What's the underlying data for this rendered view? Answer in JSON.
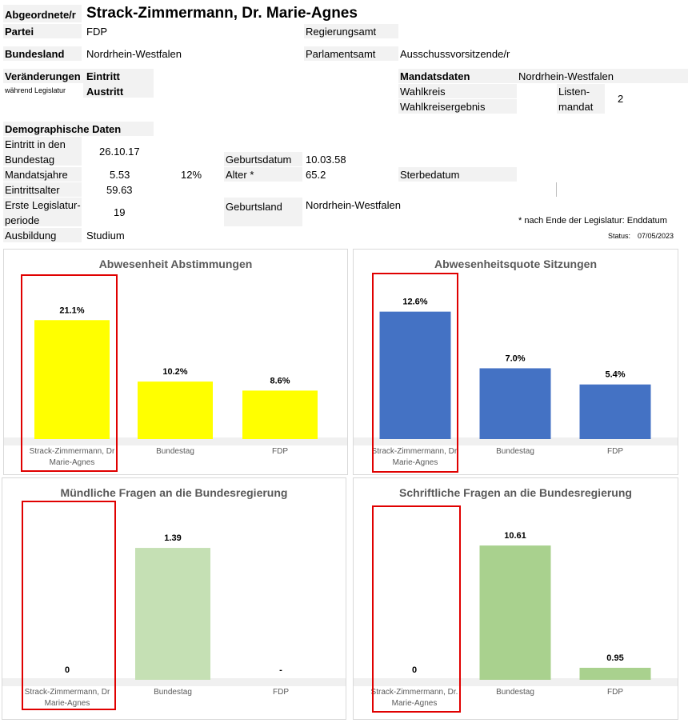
{
  "header": {
    "label": "Abgeordnete/r",
    "name": "Strack-Zimmermann, Dr. Marie-Agnes"
  },
  "info": {
    "partei_label": "Partei",
    "partei": "FDP",
    "regierungsamt_label": "Regierungsamt",
    "bundesland_label": "Bundesland",
    "bundesland": "Nordrhein-Westfalen",
    "parlamentsamt_label": "Parlamentsamt",
    "parlamentsamt": "Ausschussvorsitzende/r",
    "veraenderungen_label": "Veränderungen",
    "veraenderungen_sub": "während Legislatur",
    "eintritt_label": "Eintritt",
    "austritt_label": "Austritt",
    "mandatsdaten_label": "Mandatsdaten",
    "mandatsdaten": "Nordrhein-Westfalen",
    "wahlkreis_label": "Wahlkreis",
    "wahlkreisergebnis_label": "Wahlkreisergebnis",
    "listen_label_1": "Listen-",
    "listen_label_2": "mandat",
    "listen_value": "2"
  },
  "demo": {
    "title": "Demographische Daten",
    "eintritt_label_1": "Eintritt in den",
    "eintritt_label_2": "Bundestag",
    "eintritt_value": "26.10.17",
    "mandatsjahre_label": "Mandatsjahre",
    "mandatsjahre_value": "5.53",
    "mandatsjahre_pct": "12%",
    "eintrittsalter_label": "Eintrittsalter",
    "eintrittsalter_value": "59.63",
    "legislatur_label_1": "Erste Legislatur-",
    "legislatur_label_2": "periode",
    "legislatur_value": "19",
    "ausbildung_label": "Ausbildung",
    "ausbildung_value": "Studium",
    "geburtsdatum_label": "Geburtsdatum",
    "geburtsdatum_value": "10.03.58",
    "alter_label": "Alter *",
    "alter_value": "65.2",
    "sterbedatum_label": "Sterbedatum",
    "geburtsland_label": "Geburtsland",
    "geburtsland_value": "Nordrhein-Westfalen",
    "footnote": "* nach Ende der Legislatur: Enddatum",
    "status_label": "Status:",
    "status_value": "07/05/2023"
  },
  "chart_data": [
    {
      "type": "bar",
      "title": "Abwesenheit Abstimmungen",
      "categories": [
        "Strack-Zimmermann, Dr Marie-Agnes",
        "Bundestag",
        "FDP"
      ],
      "category_lines": [
        [
          "Strack-Zimmermann, Dr",
          "Marie-Agnes"
        ],
        [
          "Bundestag"
        ],
        [
          "FDP"
        ]
      ],
      "values": [
        21.1,
        10.2,
        8.6
      ],
      "labels": [
        "21.1%",
        "10.2%",
        "8.6%"
      ],
      "colors": [
        "#ffff00",
        "#ffff00",
        "#ffff00"
      ],
      "ylim": [
        0,
        22.7
      ],
      "grid": false
    },
    {
      "type": "bar",
      "title": "Abwesenheitsquote  Sitzungen",
      "categories": [
        "Strack-Zimmermann, Dr. Marie-Agnes",
        "Bundestag",
        "FDP"
      ],
      "category_lines": [
        [
          "Strack-Zimmermann, Dr.",
          "Marie-Agnes"
        ],
        [
          "Bundestag"
        ],
        [
          "FDP"
        ]
      ],
      "values": [
        12.6,
        7.0,
        5.4
      ],
      "labels": [
        "12.6%",
        "7.0%",
        "5.4%"
      ],
      "colors": [
        "#4472c4",
        "#4472c4",
        "#4472c4"
      ],
      "ylim": [
        0,
        13.6
      ],
      "grid": false
    },
    {
      "type": "bar",
      "title": "Mündliche Fragen an die Bundesregierung",
      "categories": [
        "Strack-Zimmermann, Dr Marie-Agnes",
        "Bundestag",
        "FDP"
      ],
      "category_lines": [
        [
          "Strack-Zimmermann, Dr",
          "Marie-Agnes"
        ],
        [
          "Bundestag"
        ],
        [
          "FDP"
        ]
      ],
      "values": [
        0,
        1.39,
        0
      ],
      "labels": [
        "0",
        "1.39",
        "-"
      ],
      "colors": [
        "#c5e0b4",
        "#c5e0b4",
        "#c5e0b4"
      ],
      "ylim": [
        0,
        1.5
      ],
      "grid": false
    },
    {
      "type": "bar",
      "title": "Schriftliche Fragen an die Bundesregierung",
      "categories": [
        "Strack-Zimmermann, Dr. Marie-Agnes",
        "Bundestag",
        "FDP"
      ],
      "category_lines": [
        [
          "Strack-Zimmermann, Dr.",
          "Marie-Agnes"
        ],
        [
          "Bundestag"
        ],
        [
          "FDP"
        ]
      ],
      "values": [
        0,
        10.61,
        0.95
      ],
      "labels": [
        "0",
        "10.61",
        "0.95"
      ],
      "colors": [
        "#a9d18e",
        "#a9d18e",
        "#a9d18e"
      ],
      "ylim": [
        0,
        11.5
      ],
      "grid": false
    }
  ]
}
